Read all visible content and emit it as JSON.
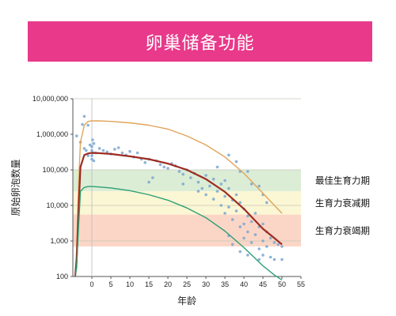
{
  "banner": {
    "title": "卵巢储备功能"
  },
  "colors": {
    "banner": "#e8398a",
    "band_optimal": "#dcedd6",
    "band_declining": "#fbf6d4",
    "band_exhausted": "#fbd6c6",
    "curve_median": "#9e2b22",
    "curve_upper": "#e0a45a",
    "curve_lower": "#2aa073",
    "points": "#7aa6cf"
  },
  "chart_data": {
    "type": "scatter",
    "xlabel": "年龄",
    "ylabel": "原始卵泡数量",
    "x_ticks": [
      0,
      5,
      10,
      15,
      20,
      25,
      30,
      35,
      40,
      45,
      50,
      55
    ],
    "y_ticks": [
      100,
      1000,
      10000,
      100000,
      1000000,
      10000000
    ],
    "y_tick_labels": [
      "100",
      "1,000",
      "10,000",
      "100,000",
      "1,000,000",
      "10,000,000"
    ],
    "y_scale": "log",
    "xlim": [
      -5,
      55
    ],
    "ylim": [
      100,
      10000000
    ],
    "bands": [
      {
        "label": "最佳生育力期",
        "ymin": 25000,
        "ymax": 100000
      },
      {
        "label": "生育力衰减期",
        "ymin": 5500,
        "ymax": 25000
      },
      {
        "label": "生育力衰竭期",
        "ymin": 700,
        "ymax": 5500
      }
    ],
    "reference_lines": [
      1000,
      10000,
      100000
    ],
    "series": [
      {
        "role": "upper",
        "x": [
          -4.4,
          -4,
          -3.5,
          -3,
          -2,
          -1,
          0,
          2,
          5,
          10,
          15,
          20,
          25,
          30,
          35,
          40,
          45,
          48,
          50
        ],
        "y": [
          100,
          600,
          40000,
          600000,
          1800000,
          2300000,
          2400000,
          2390000,
          2300000,
          2100000,
          1800000,
          1400000,
          900000,
          500000,
          230000,
          80000,
          22000,
          10000,
          6000
        ]
      },
      {
        "role": "median",
        "x": [
          -4.4,
          -4,
          -3.5,
          -3,
          -2,
          -1,
          0,
          2,
          5,
          10,
          15,
          20,
          25,
          30,
          35,
          40,
          45,
          48,
          50
        ],
        "y": [
          100,
          300,
          8000,
          120000,
          260000,
          290000,
          300000,
          295000,
          280000,
          240000,
          200000,
          150000,
          100000,
          55000,
          24000,
          8000,
          2200,
          1200,
          800
        ]
      },
      {
        "role": "lower",
        "x": [
          -4.4,
          -4,
          -3.5,
          -3,
          -2,
          -1,
          0,
          2,
          5,
          10,
          15,
          20,
          25,
          30,
          35,
          40,
          45,
          48,
          50
        ],
        "y": [
          100,
          180,
          2500,
          25000,
          32000,
          34000,
          34000,
          33000,
          31000,
          26000,
          20000,
          14000,
          8500,
          4500,
          1900,
          650,
          200,
          110,
          80
        ]
      },
      {
        "role": "observations",
        "points": [
          [
            -4,
            900000
          ],
          [
            -3,
            600000
          ],
          [
            -2.5,
            1900000
          ],
          [
            -2,
            3200000
          ],
          [
            -1,
            1800000
          ],
          [
            -2,
            400000
          ],
          [
            -1.5,
            350000
          ],
          [
            -1,
            250000
          ],
          [
            -0.5,
            500000
          ],
          [
            0,
            450000
          ],
          [
            0,
            350000
          ],
          [
            0,
            250000
          ],
          [
            0,
            200000
          ],
          [
            0.2,
            700000
          ],
          [
            0.3,
            300000
          ],
          [
            0.5,
            550000
          ],
          [
            0.5,
            180000
          ],
          [
            1,
            300000
          ],
          [
            2,
            400000
          ],
          [
            3,
            350000
          ],
          [
            4,
            320000
          ],
          [
            5,
            280000
          ],
          [
            6,
            380000
          ],
          [
            7,
            420000
          ],
          [
            8,
            300000
          ],
          [
            9,
            260000
          ],
          [
            10,
            330000
          ],
          [
            11,
            230000
          ],
          [
            12,
            300000
          ],
          [
            13,
            200000
          ],
          [
            14,
            160000
          ],
          [
            15,
            200000
          ],
          [
            15,
            45000
          ],
          [
            16,
            60000
          ],
          [
            17,
            180000
          ],
          [
            18,
            140000
          ],
          [
            19,
            120000
          ],
          [
            20,
            110000
          ],
          [
            21,
            150000
          ],
          [
            22,
            130000
          ],
          [
            23,
            90000
          ],
          [
            24,
            75000
          ],
          [
            24,
            40000
          ],
          [
            25,
            100000
          ],
          [
            26,
            60000
          ],
          [
            27,
            80000
          ],
          [
            28,
            45000
          ],
          [
            28,
            25000
          ],
          [
            29,
            30000
          ],
          [
            30,
            70000
          ],
          [
            30,
            20000
          ],
          [
            31,
            35000
          ],
          [
            32,
            15000
          ],
          [
            32,
            55000
          ],
          [
            33,
            25000
          ],
          [
            34,
            10000
          ],
          [
            34,
            40000
          ],
          [
            35,
            18000
          ],
          [
            35,
            6000
          ],
          [
            36,
            30000
          ],
          [
            36,
            9000
          ],
          [
            37,
            14000
          ],
          [
            37,
            4000
          ],
          [
            38,
            20000
          ],
          [
            38,
            7000
          ],
          [
            39,
            12000
          ],
          [
            39,
            2500
          ],
          [
            40,
            8000
          ],
          [
            40,
            3000
          ],
          [
            40,
            1200
          ],
          [
            41,
            5000
          ],
          [
            41,
            1800
          ],
          [
            42,
            3500
          ],
          [
            42,
            900
          ],
          [
            43,
            6000
          ],
          [
            43,
            1500
          ],
          [
            44,
            2500
          ],
          [
            44,
            600
          ],
          [
            45,
            3000
          ],
          [
            45,
            1000
          ],
          [
            45,
            400
          ],
          [
            46,
            1800
          ],
          [
            46,
            700
          ],
          [
            47,
            1200
          ],
          [
            47,
            350
          ],
          [
            48,
            900
          ],
          [
            48,
            300
          ],
          [
            49,
            800
          ],
          [
            50,
            700
          ],
          [
            50,
            300
          ],
          [
            36,
            260000
          ],
          [
            38,
            170000
          ],
          [
            39,
            90000
          ],
          [
            41,
            90000
          ],
          [
            44,
            35000
          ],
          [
            46,
            12000
          ],
          [
            45,
            20000
          ],
          [
            33,
            120000
          ],
          [
            35,
            50000
          ],
          [
            42,
            40000
          ],
          [
            37,
            800
          ],
          [
            39,
            500
          ],
          [
            44,
            300
          ],
          [
            36,
            1400
          ],
          [
            41,
            400
          ]
        ]
      }
    ]
  }
}
